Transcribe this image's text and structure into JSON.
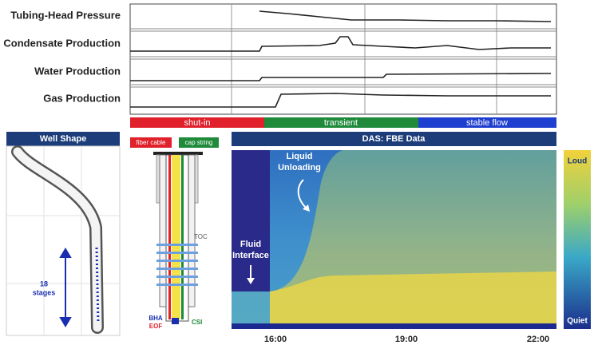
{
  "top_panel": {
    "tracks": [
      "Tubing-Head Pressure",
      "Condensate Production",
      "Water Production",
      "Gas Production"
    ]
  },
  "phases": [
    "shut-in",
    "transient",
    "stable flow"
  ],
  "well_shape": {
    "title": "Well Shape",
    "stages_label": [
      "18",
      "stages"
    ]
  },
  "wellbore": {
    "fiber_cable": "fiber cable",
    "cap_string": "cap string",
    "toc": "TOC",
    "bha": "BHA",
    "eof": "EOF",
    "csi": "CSI"
  },
  "das": {
    "title": "DAS: FBE Data",
    "liquid_unloading": [
      "Liquid",
      "Unloading"
    ],
    "fluid_interface": [
      "Fluid",
      "Interface"
    ],
    "time_labels": [
      "16:00",
      "19:00",
      "22:00"
    ]
  },
  "colorbar": {
    "top": "Loud",
    "bottom": "Quiet"
  }
}
